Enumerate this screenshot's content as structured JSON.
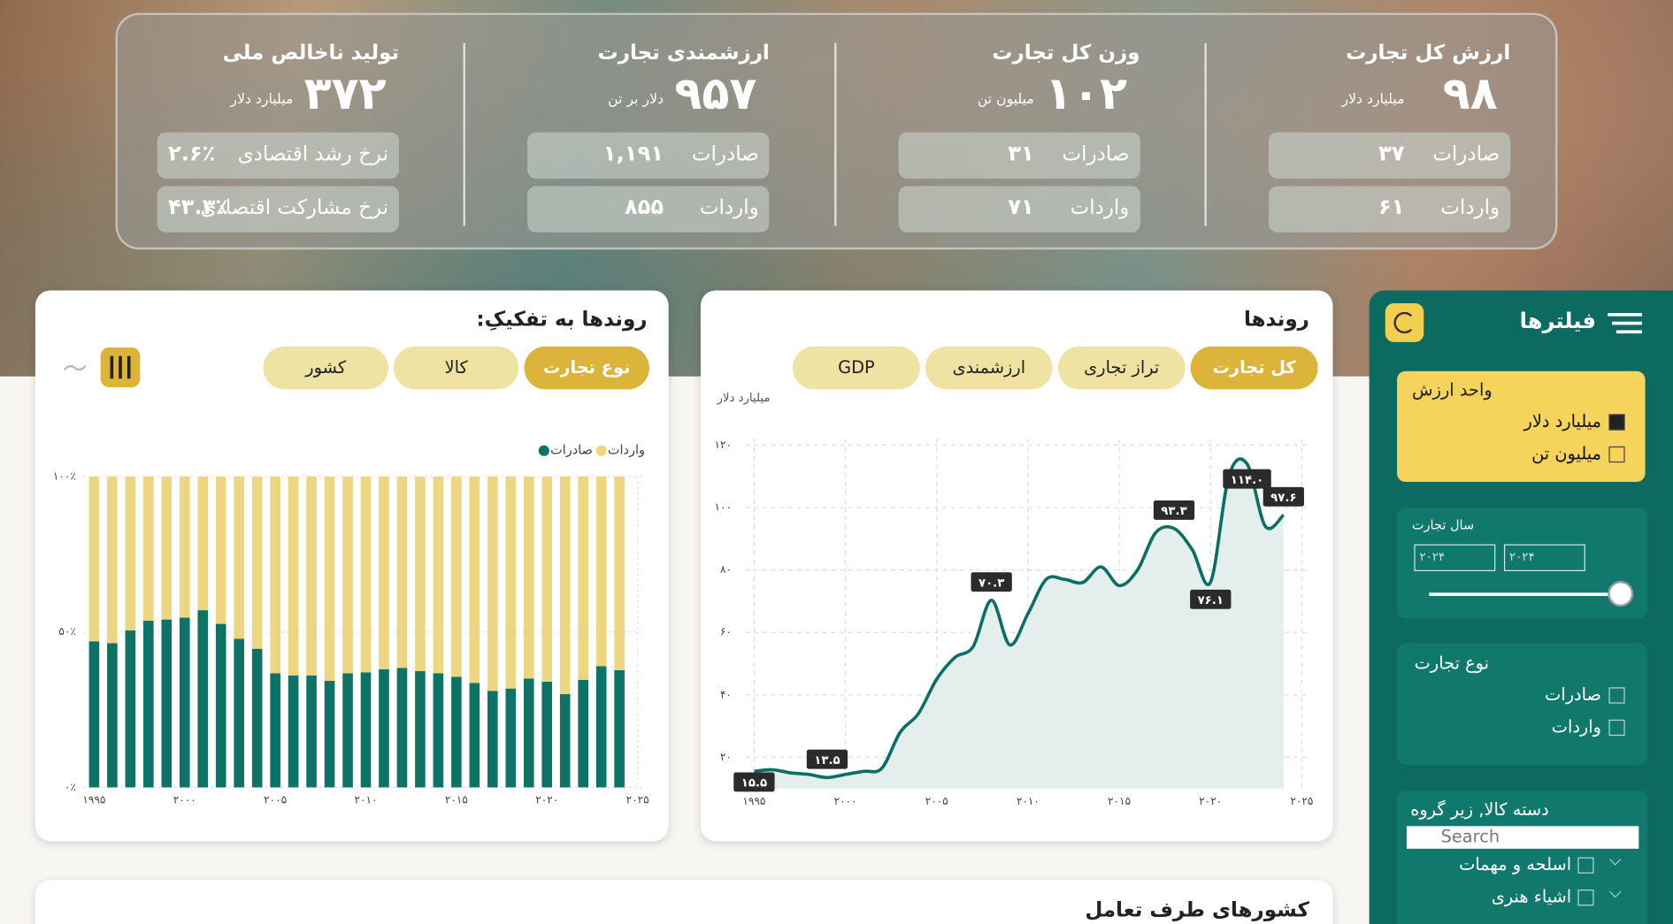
{
  "kpis": [
    {
      "title": "ارزش کل تجارت",
      "value": "۹۸",
      "unit": "میلیارد دلار",
      "rows": [
        {
          "label": "صادرات",
          "value": "۳۷"
        },
        {
          "label": "واردات",
          "value": "۶۱"
        }
      ]
    },
    {
      "title": "وزن کل تجارت",
      "value": "۱۰۲",
      "unit": "میلیون تن",
      "rows": [
        {
          "label": "صادرات",
          "value": "۳۱"
        },
        {
          "label": "واردات",
          "value": "۷۱"
        }
      ]
    },
    {
      "title": "ارزشمندی تجارت",
      "value": "۹۵۷",
      "unit": "دلار بر تن",
      "rows": [
        {
          "label": "صادرات",
          "value": "۱,۱۹۱"
        },
        {
          "label": "واردات",
          "value": "۸۵۵"
        }
      ]
    },
    {
      "title": "تولید ناخالص ملی",
      "value": "۳۷۲",
      "unit": "میلیارد دلار",
      "rows": [
        {
          "label": "نرخ رشد اقتصادی",
          "value": "۲.۶٪"
        },
        {
          "label": "نرخ مشارکت اقتصادی",
          "value": "۴۳.۳٪"
        }
      ]
    }
  ],
  "filters": {
    "title": "فیلترها",
    "value_unit": {
      "title": "واحد ارزش",
      "options": [
        {
          "label": "میلیارد دلار",
          "checked": true
        },
        {
          "label": "میلیون تن",
          "checked": false
        }
      ]
    },
    "year": {
      "title": "سال تجارت",
      "from": "۲۰۲۴",
      "to": "۲۰۲۴"
    },
    "trade_type": {
      "title": "نوع تجارت",
      "options": [
        {
          "label": "صادرات",
          "checked": false
        },
        {
          "label": "واردات",
          "checked": false
        }
      ]
    },
    "category": {
      "title": "دسته کالا, زیر گروه",
      "search_placeholder": "Search",
      "options": [
        {
          "label": "اسلحه و مهمات",
          "checked": false
        },
        {
          "label": "اشیاء هنری",
          "checked": false
        }
      ]
    }
  },
  "chart_data": [
    {
      "type": "line",
      "title": "روندها",
      "tabs": [
        "کل تجارت",
        "تراز تجاری",
        "ارزشمندی",
        "GDP"
      ],
      "active_tab": 0,
      "ylabel": "میلیارد دلار",
      "color": "#0b6f66",
      "area_color": "#e3eeed",
      "grid": true,
      "x": [
        1995,
        1996,
        1997,
        1998,
        1999,
        2000,
        2001,
        2002,
        2003,
        2004,
        2005,
        2006,
        2007,
        2008,
        2009,
        2010,
        2011,
        2012,
        2013,
        2014,
        2015,
        2016,
        2017,
        2018,
        2019,
        2020,
        2021,
        2022,
        2023,
        2024
      ],
      "values": [
        15.5,
        16,
        15,
        14.5,
        13.5,
        14.5,
        15.5,
        16.5,
        28,
        34,
        45,
        52,
        55.5,
        70.3,
        56,
        66,
        77,
        77,
        76,
        81,
        75,
        80,
        92,
        93.3,
        86.5,
        76.1,
        110,
        114.0,
        94,
        97.6
      ],
      "value_labels": [
        "۱۵.۵",
        null,
        null,
        null,
        "۱۳.۵",
        null,
        null,
        null,
        null,
        null,
        null,
        null,
        null,
        "۷۰.۳",
        null,
        null,
        null,
        null,
        null,
        null,
        null,
        null,
        null,
        "۹۳.۳",
        null,
        "۷۶.۱",
        null,
        "۱۱۴.۰",
        null,
        "۹۷.۶"
      ],
      "xlim": [
        1995,
        2025
      ],
      "xticks": [
        {
          "value": 1995,
          "label": "۱۹۹۵"
        },
        {
          "value": 2000,
          "label": "۲۰۰۰"
        },
        {
          "value": 2005,
          "label": "۲۰۰۵"
        },
        {
          "value": 2010,
          "label": "۲۰۱۰"
        },
        {
          "value": 2015,
          "label": "۲۰۱۵"
        },
        {
          "value": 2020,
          "label": "۲۰۲۰"
        },
        {
          "value": 2025,
          "label": "۲۰۲۵"
        }
      ],
      "ylim": [
        10,
        122
      ],
      "yticks": [
        {
          "value": 20,
          "label": "۲۰"
        },
        {
          "value": 40,
          "label": "۴۰"
        },
        {
          "value": 60,
          "label": "۶۰"
        },
        {
          "value": 80,
          "label": "۸۰"
        },
        {
          "value": 100,
          "label": "۱۰۰"
        },
        {
          "value": 120,
          "label": "۱۲۰"
        }
      ]
    },
    {
      "type": "stacked_bar",
      "title": "روندها به تفکیکِ:",
      "tabs": [
        "نوع تجارت",
        "کالا",
        "کشور"
      ],
      "active_tab": 0,
      "grid": true,
      "x": [
        1995,
        1996,
        1997,
        1998,
        1999,
        2000,
        2001,
        2002,
        2003,
        2004,
        2005,
        2006,
        2007,
        2008,
        2009,
        2010,
        2011,
        2012,
        2013,
        2014,
        2015,
        2016,
        2017,
        2018,
        2019,
        2020,
        2021,
        2022,
        2023,
        2024
      ],
      "series": [
        {
          "name": "صادرات",
          "color": "#0d7366",
          "values": [
            47,
            46.4,
            50.5,
            53.6,
            54,
            54.6,
            57,
            52.6,
            47.8,
            44.6,
            36.7,
            36,
            36,
            34.3,
            36.7,
            37,
            38,
            38.4,
            37.4,
            36.7,
            35.6,
            33.6,
            31,
            31.8,
            35,
            34,
            30,
            34.6,
            39,
            37.7
          ]
        },
        {
          "name": "واردات",
          "color": "#ecd682",
          "values": [
            53,
            53.6,
            49.5,
            46.4,
            46,
            45.4,
            43,
            47.4,
            52.2,
            55.4,
            63.3,
            64,
            64,
            65.7,
            63.3,
            63,
            62,
            61.6,
            62.6,
            63.3,
            64.4,
            66.4,
            69,
            68.2,
            65,
            66,
            70,
            65.4,
            61,
            62.3
          ]
        }
      ],
      "xlim": [
        1995,
        2025
      ],
      "xticks": [
        {
          "value": 1995,
          "label": "۱۹۹۵"
        },
        {
          "value": 2000,
          "label": "۲۰۰۰"
        },
        {
          "value": 2005,
          "label": "۲۰۰۵"
        },
        {
          "value": 2010,
          "label": "۲۰۱۰"
        },
        {
          "value": 2015,
          "label": "۲۰۱۵"
        },
        {
          "value": 2020,
          "label": "۲۰۲۰"
        },
        {
          "value": 2025,
          "label": "۲۰۲۵"
        }
      ],
      "ylim": [
        0,
        100
      ],
      "yticks": [
        {
          "value": 0,
          "label": "۰٪"
        },
        {
          "value": 50,
          "label": "۵۰٪"
        },
        {
          "value": 100,
          "label": "۱۰۰٪"
        }
      ]
    }
  ],
  "countries_panel": {
    "title": "کشورهای طرف تعامل"
  }
}
